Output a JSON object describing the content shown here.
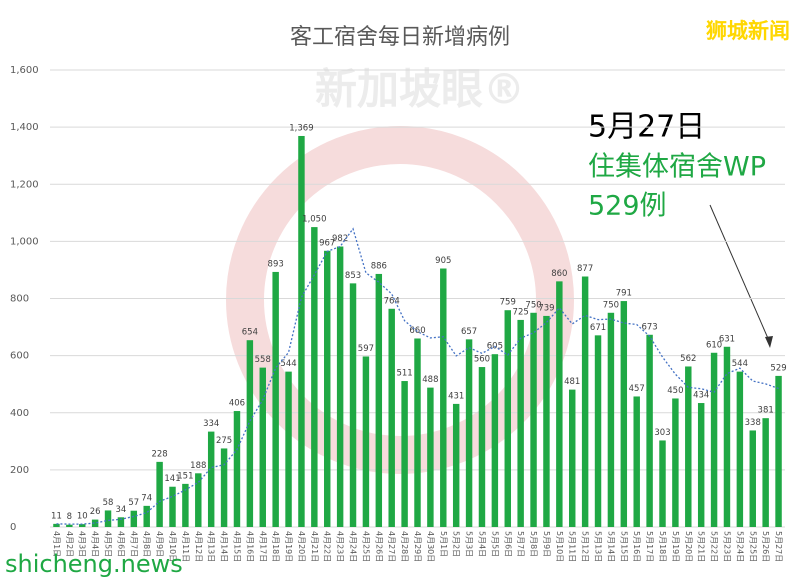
{
  "brand": "狮城新闻",
  "watermark": "新加坡眼®",
  "source": "shicheng.news",
  "chart_data": {
    "type": "bar",
    "title": "客工宿舍每日新增病例",
    "annotation": {
      "date": "5月27日",
      "text": "住集体宿舍WP",
      "count": "529例"
    },
    "categories": [
      "4月1日",
      "4月2日",
      "4月3日",
      "4月4日",
      "4月5日",
      "4月6日",
      "4月7日",
      "4月8日",
      "4月9日",
      "4月10日",
      "4月11日",
      "4月12日",
      "4月13日",
      "4月14日",
      "4月15日",
      "4月16日",
      "4月17日",
      "4月18日",
      "4月19日",
      "4月20日",
      "4月21日",
      "4月22日",
      "4月23日",
      "4月24日",
      "4月25日",
      "4月26日",
      "4月27日",
      "4月28日",
      "4月29日",
      "4月30日",
      "5月1日",
      "5月2日",
      "5月3日",
      "5月4日",
      "5月5日",
      "5月6日",
      "5月7日",
      "5月8日",
      "5月9日",
      "5月10日",
      "5月11日",
      "5月12日",
      "5月13日",
      "5月14日",
      "5月15日",
      "5月16日",
      "5月17日",
      "5月18日",
      "5月19日",
      "5月20日",
      "5月21日",
      "5月22日",
      "5月23日",
      "5月24日",
      "5月25日",
      "5月26日",
      "5月27日"
    ],
    "series": [
      {
        "type": "bar",
        "color": "#1fa844",
        "values": [
          11,
          8,
          10,
          26,
          58,
          34,
          57,
          74,
          228,
          141,
          151,
          188,
          334,
          275,
          406,
          654,
          558,
          893,
          544,
          1369,
          1050,
          967,
          982,
          853,
          597,
          886,
          764,
          511,
          660,
          488,
          905,
          431,
          657,
          560,
          605,
          759,
          725,
          750,
          739,
          860,
          481,
          877,
          671,
          750,
          791,
          457,
          673,
          303,
          450,
          562,
          434,
          610,
          631,
          544,
          338,
          381,
          529
        ],
        "value_labels": [
          "11",
          "8",
          "10",
          "26",
          "58",
          "34",
          "57",
          "74",
          "228",
          "141",
          "151",
          "188",
          "334",
          "275",
          "406",
          "654",
          "558",
          "893",
          "544",
          "1,369",
          "1,050",
          "967",
          "982",
          "853",
          "597",
          "886",
          "764",
          "511",
          "660",
          "488",
          "905",
          "431",
          "657",
          "560",
          "605",
          "759",
          "725",
          "750",
          "739",
          "860",
          "481",
          "877",
          "671",
          "750",
          "791",
          "457",
          "673",
          "303",
          "450",
          "562",
          "434",
          "610",
          "631",
          "544",
          "338",
          "381",
          "529"
        ]
      },
      {
        "type": "line",
        "color": "#4472c4",
        "values": [
          11,
          10,
          10,
          14,
          23,
          27,
          37,
          50,
          90,
          107,
          130,
          156,
          208,
          218,
          271,
          371,
          445,
          557,
          611,
          804,
          883,
          965,
          982,
          1044,
          890,
          857,
          816,
          722,
          684,
          662,
          666,
          599,
          628,
          608,
          632,
          602,
          661,
          680,
          716,
          767,
          711,
          741,
          726,
          728,
          714,
          709,
          668,
          595,
          535,
          489,
          484,
          472,
          537,
          556,
          511,
          501,
          485
        ]
      }
    ],
    "ylim": [
      0,
      1600
    ],
    "yticks": [
      0,
      {
        "value": 200,
        "label": "200"
      },
      400,
      600,
      800,
      {
        "value": 1000,
        "label": "1,000"
      },
      {
        "value": 1200,
        "label": "1,200"
      },
      {
        "value": 1400,
        "label": "1,400"
      },
      {
        "value": 1600,
        "label": "1,600"
      }
    ],
    "grid": true
  }
}
